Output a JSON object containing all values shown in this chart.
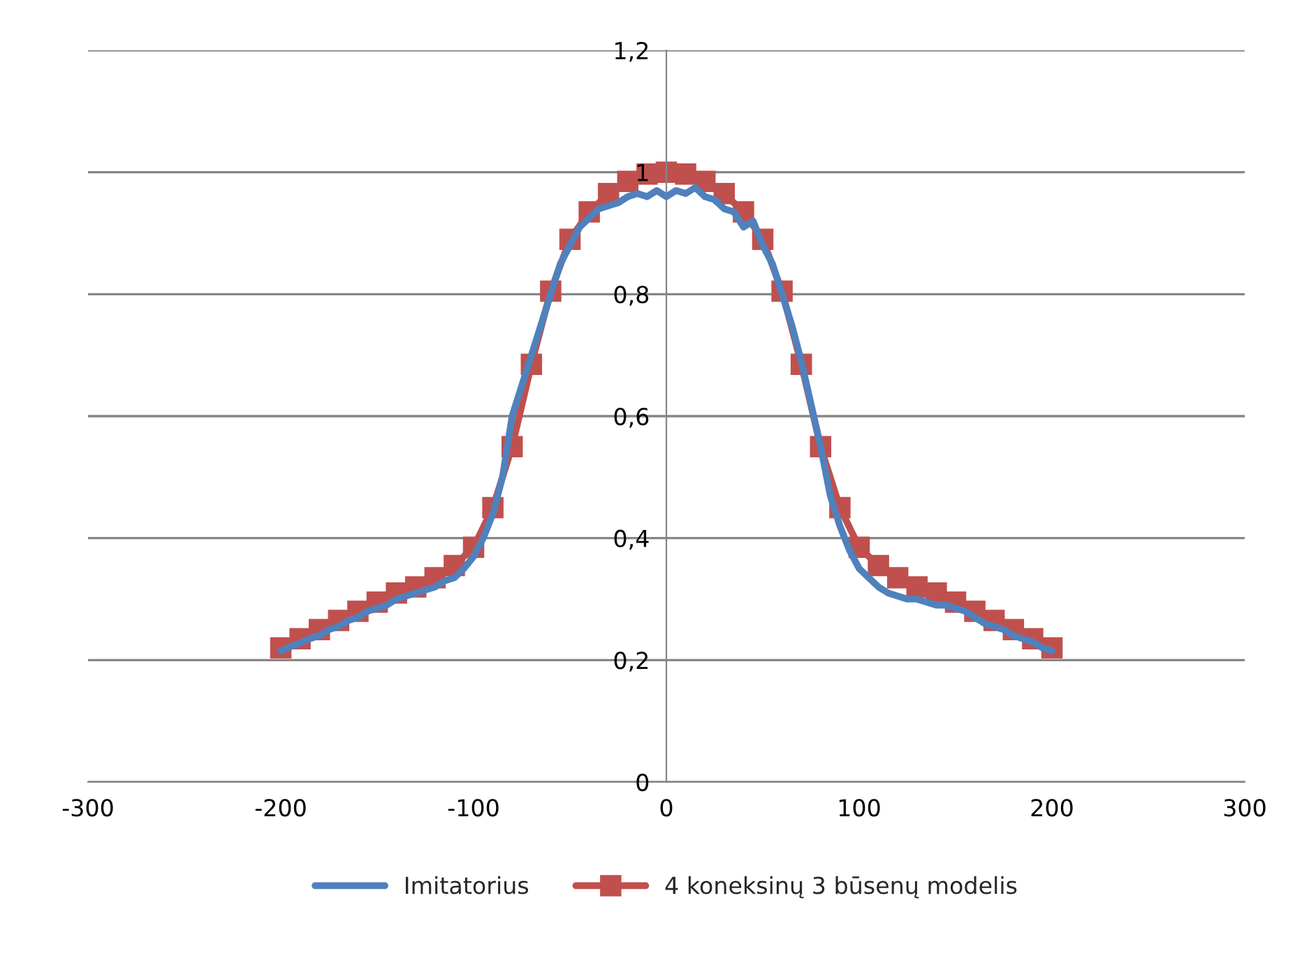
{
  "chart_data": {
    "type": "line",
    "xlim": [
      -300,
      300
    ],
    "xticks": [
      -300,
      -200,
      -100,
      0,
      100,
      200,
      300
    ],
    "ylim": [
      0,
      1.2
    ],
    "yticks": [
      0,
      {
        "value": 0.2,
        "label": "0,2"
      },
      {
        "value": 0.4,
        "label": "0,4"
      },
      {
        "value": 0.6,
        "label": "0,6"
      },
      {
        "value": 0.8,
        "label": "0,8"
      },
      1,
      {
        "value": 1.2,
        "label": "1,2"
      }
    ],
    "grid": "y",
    "legend": "bottom",
    "series": [
      {
        "name": "Imitatorius",
        "color": "#4f81bd",
        "marker": "none",
        "x": [
          -200,
          -195,
          -190,
          -185,
          -180,
          -175,
          -170,
          -165,
          -160,
          -155,
          -150,
          -145,
          -140,
          -135,
          -130,
          -125,
          -120,
          -115,
          -110,
          -105,
          -100,
          -95,
          -90,
          -85,
          -80,
          -75,
          -70,
          -65,
          -60,
          -55,
          -50,
          -45,
          -40,
          -35,
          -30,
          -25,
          -20,
          -15,
          -10,
          -5,
          0,
          5,
          10,
          15,
          20,
          25,
          30,
          35,
          40,
          45,
          50,
          55,
          60,
          65,
          70,
          75,
          80,
          85,
          90,
          95,
          100,
          105,
          110,
          115,
          120,
          125,
          130,
          135,
          140,
          145,
          150,
          155,
          160,
          165,
          170,
          175,
          180,
          185,
          190,
          195,
          200
        ],
        "values": [
          0.215,
          0.222,
          0.228,
          0.235,
          0.24,
          0.25,
          0.255,
          0.265,
          0.27,
          0.28,
          0.285,
          0.29,
          0.3,
          0.305,
          0.31,
          0.315,
          0.32,
          0.33,
          0.335,
          0.35,
          0.37,
          0.4,
          0.44,
          0.5,
          0.6,
          0.65,
          0.7,
          0.75,
          0.8,
          0.85,
          0.88,
          0.91,
          0.925,
          0.94,
          0.945,
          0.95,
          0.96,
          0.965,
          0.96,
          0.97,
          0.96,
          0.97,
          0.965,
          0.975,
          0.96,
          0.955,
          0.94,
          0.935,
          0.91,
          0.92,
          0.88,
          0.85,
          0.8,
          0.75,
          0.69,
          0.62,
          0.55,
          0.47,
          0.42,
          0.38,
          0.35,
          0.335,
          0.32,
          0.31,
          0.305,
          0.3,
          0.3,
          0.295,
          0.29,
          0.29,
          0.285,
          0.28,
          0.27,
          0.26,
          0.255,
          0.25,
          0.24,
          0.235,
          0.23,
          0.22,
          0.215
        ]
      },
      {
        "name": "4 koneksinų 3 būsenų modelis",
        "color": "#c0504d",
        "marker": "square",
        "x": [
          -200,
          -190,
          -180,
          -170,
          -160,
          -150,
          -140,
          -130,
          -120,
          -110,
          -100,
          -90,
          -80,
          -70,
          -60,
          -50,
          -40,
          -30,
          -20,
          -10,
          0,
          10,
          20,
          30,
          40,
          50,
          60,
          70,
          80,
          90,
          100,
          110,
          120,
          130,
          140,
          150,
          160,
          170,
          180,
          190,
          200
        ],
        "values": [
          0.22,
          0.235,
          0.25,
          0.265,
          0.28,
          0.295,
          0.31,
          0.32,
          0.335,
          0.355,
          0.385,
          0.45,
          0.55,
          0.685,
          0.805,
          0.89,
          0.935,
          0.965,
          0.985,
          0.997,
          1.0,
          0.997,
          0.985,
          0.965,
          0.935,
          0.89,
          0.805,
          0.685,
          0.55,
          0.45,
          0.385,
          0.355,
          0.335,
          0.32,
          0.31,
          0.295,
          0.28,
          0.265,
          0.25,
          0.235,
          0.22
        ]
      }
    ]
  }
}
